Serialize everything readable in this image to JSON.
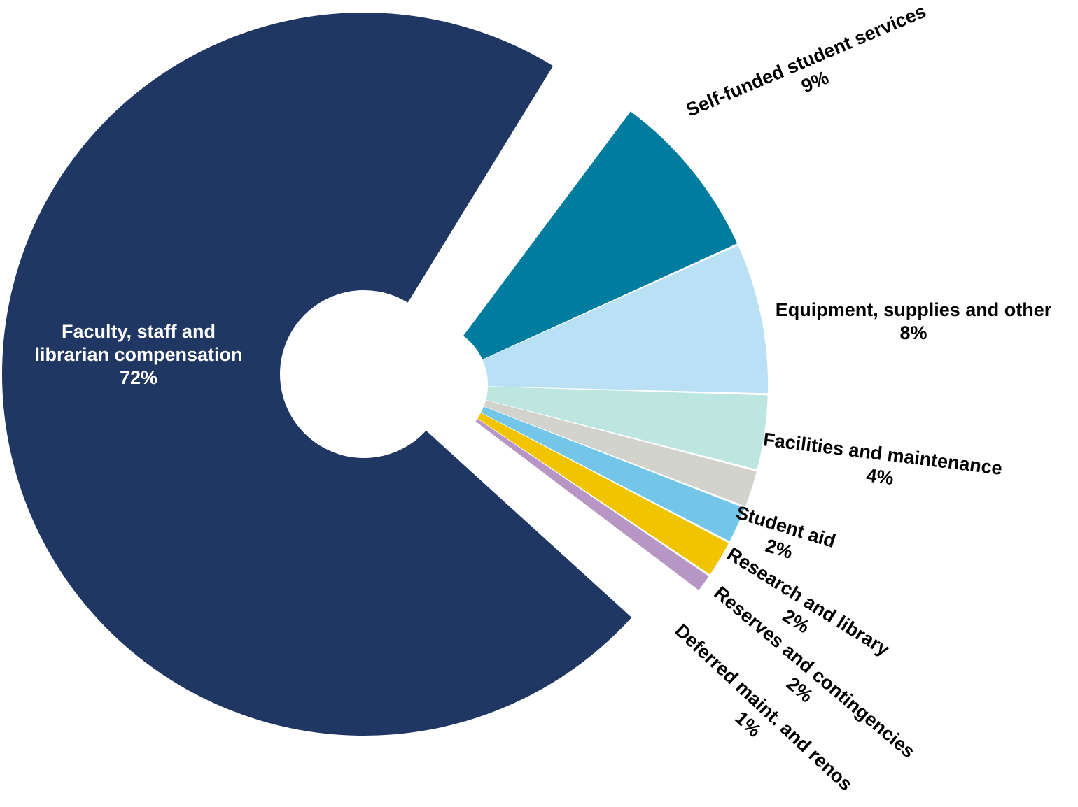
{
  "chart_data": {
    "type": "pie",
    "title": "",
    "slices": [
      {
        "label_lines": [
          "Faculty, staff and",
          "librarian compensation"
        ],
        "value_label": "72%",
        "value": 72,
        "color": "#213763"
      },
      {
        "label_lines": [
          "Self-funded student services"
        ],
        "value_label": "9%",
        "value": 9,
        "color": "#007c9f"
      },
      {
        "label_lines": [
          "Equipment, supplies and other"
        ],
        "value_label": "8%",
        "value": 8,
        "color": "#b9e0f4"
      },
      {
        "label_lines": [
          "Facilities and maintenance"
        ],
        "value_label": "4%",
        "value": 4,
        "color": "#bde6e1"
      },
      {
        "label_lines": [
          "Student aid"
        ],
        "value_label": "2%",
        "value": 2,
        "color": "#d1d3cc"
      },
      {
        "label_lines": [
          "Research and library"
        ],
        "value_label": "2%",
        "value": 2,
        "color": "#74c6e9"
      },
      {
        "label_lines": [
          "Reserves and contingencies"
        ],
        "value_label": "2%",
        "value": 2,
        "color": "#f0c500"
      },
      {
        "label_lines": [
          "Deferred maint. and renos"
        ],
        "value_label": "1%",
        "value": 1,
        "color": "#b795c4"
      }
    ]
  }
}
